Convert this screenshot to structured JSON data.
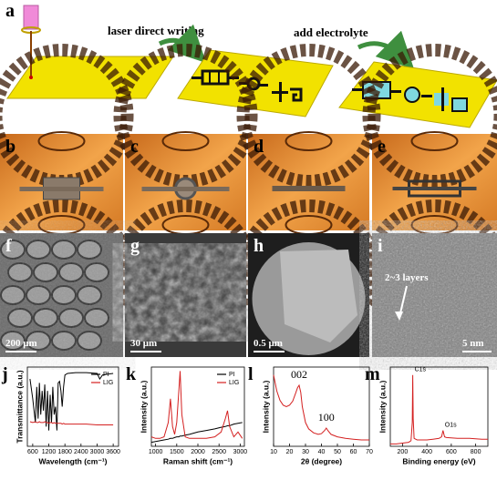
{
  "schematic": {
    "label": "a",
    "step1": "laser direct writing",
    "step2": "add electrolyte"
  },
  "photos": {
    "labels": [
      "b",
      "c",
      "d",
      "e"
    ]
  },
  "micrographs": [
    {
      "label": "f",
      "scale": "200 μm"
    },
    {
      "label": "g",
      "scale": "30 μm"
    },
    {
      "label": "h",
      "scale": "0.5 μm"
    },
    {
      "label": "i",
      "scale": "5 nm",
      "annotation": "2~3 layers"
    }
  ],
  "chart_data": [
    {
      "type": "line",
      "label": "j",
      "x_label": "Wavelength (cm⁻¹)",
      "y_label": "Transmittance (a.u.)",
      "xlim": [
        400,
        3800
      ],
      "xticks": [
        600,
        1200,
        1800,
        2400,
        3000,
        3600
      ],
      "ylim": [
        0,
        1
      ],
      "legend": "upper right",
      "x": [
        500,
        600,
        700,
        750,
        800,
        850,
        900,
        950,
        1000,
        1050,
        1100,
        1150,
        1200,
        1250,
        1300,
        1350,
        1400,
        1450,
        1500,
        1550,
        1600,
        1650,
        1700,
        1750,
        1800,
        1900,
        2200,
        2600,
        3000,
        3100,
        3200,
        3400,
        3600
      ],
      "series": [
        {
          "name": "PI",
          "color": "#000000",
          "values": [
            0.85,
            0.6,
            0.3,
            0.75,
            0.35,
            0.8,
            0.4,
            0.7,
            0.45,
            0.78,
            0.25,
            0.7,
            0.2,
            0.65,
            0.3,
            0.75,
            0.4,
            0.5,
            0.2,
            0.8,
            0.82,
            0.7,
            0.5,
            0.75,
            0.9,
            0.92,
            0.93,
            0.93,
            0.92,
            0.85,
            0.9,
            0.91,
            0.92
          ]
        },
        {
          "name": "LIG",
          "color": "#d42020",
          "values": [
            0.31,
            0.3,
            0.31,
            0.3,
            0.3,
            0.31,
            0.3,
            0.3,
            0.3,
            0.31,
            0.3,
            0.3,
            0.29,
            0.3,
            0.3,
            0.29,
            0.3,
            0.29,
            0.29,
            0.29,
            0.29,
            0.29,
            0.28,
            0.29,
            0.28,
            0.28,
            0.28,
            0.28,
            0.27,
            0.27,
            0.27,
            0.27,
            0.27
          ]
        }
      ]
    },
    {
      "type": "line",
      "label": "k",
      "x_label": "Raman shift (cm⁻¹)",
      "y_label": "Intensity (a.u.)",
      "xlim": [
        900,
        3100
      ],
      "xticks": [
        1000,
        1500,
        2000,
        2500,
        3000
      ],
      "ylim": [
        0,
        1
      ],
      "legend": "upper right",
      "x": [
        900,
        1000,
        1100,
        1200,
        1300,
        1350,
        1400,
        1450,
        1500,
        1550,
        1580,
        1620,
        1700,
        1800,
        2000,
        2200,
        2400,
        2550,
        2650,
        2700,
        2750,
        2850,
        2950,
        3050
      ],
      "series": [
        {
          "name": "PI",
          "color": "#000000",
          "values": [
            0.05,
            0.06,
            0.07,
            0.08,
            0.09,
            0.1,
            0.1,
            0.11,
            0.12,
            0.12,
            0.13,
            0.13,
            0.14,
            0.15,
            0.18,
            0.2,
            0.22,
            0.24,
            0.25,
            0.26,
            0.26,
            0.28,
            0.29,
            0.3
          ]
        },
        {
          "name": "LIG",
          "color": "#d42020",
          "values": [
            0.12,
            0.1,
            0.1,
            0.12,
            0.3,
            0.6,
            0.25,
            0.15,
            0.3,
            0.7,
            0.95,
            0.4,
            0.12,
            0.1,
            0.1,
            0.1,
            0.12,
            0.18,
            0.35,
            0.45,
            0.25,
            0.12,
            0.18,
            0.1
          ]
        }
      ]
    },
    {
      "type": "line",
      "label": "l",
      "x_label": "2θ (degree)",
      "y_label": "Intensity (a.u.)",
      "xlim": [
        10,
        70
      ],
      "xticks": [
        10,
        20,
        30,
        40,
        50,
        60,
        70
      ],
      "ylim": [
        0,
        1
      ],
      "annotations": [
        "002",
        "100"
      ],
      "x": [
        10,
        12,
        14,
        16,
        18,
        20,
        22,
        24,
        25,
        26,
        27,
        28,
        30,
        32,
        35,
        38,
        40,
        42,
        43,
        44,
        46,
        50,
        55,
        60,
        65,
        70
      ],
      "series": [
        {
          "color": "#d42020",
          "values": [
            0.9,
            0.7,
            0.58,
            0.52,
            0.5,
            0.52,
            0.57,
            0.68,
            0.74,
            0.77,
            0.68,
            0.5,
            0.3,
            0.22,
            0.17,
            0.15,
            0.16,
            0.2,
            0.23,
            0.2,
            0.15,
            0.12,
            0.1,
            0.09,
            0.08,
            0.08
          ]
        }
      ]
    },
    {
      "type": "line",
      "label": "m",
      "x_label": "Binding energy (eV)",
      "y_label": "Intensity (a.u.)",
      "xlim": [
        100,
        900
      ],
      "xticks": [
        200,
        400,
        600,
        800
      ],
      "ylim": [
        0,
        1
      ],
      "annotations": [
        "C1s",
        "O1s"
      ],
      "x": [
        100,
        150,
        200,
        250,
        270,
        280,
        284,
        288,
        295,
        320,
        400,
        450,
        500,
        520,
        532,
        545,
        560,
        650,
        750,
        850,
        900
      ],
      "series": [
        {
          "color": "#d42020",
          "values": [
            0.03,
            0.03,
            0.04,
            0.05,
            0.07,
            0.3,
            0.9,
            0.35,
            0.1,
            0.08,
            0.08,
            0.09,
            0.1,
            0.12,
            0.2,
            0.12,
            0.11,
            0.1,
            0.1,
            0.09,
            0.09
          ]
        }
      ]
    }
  ]
}
